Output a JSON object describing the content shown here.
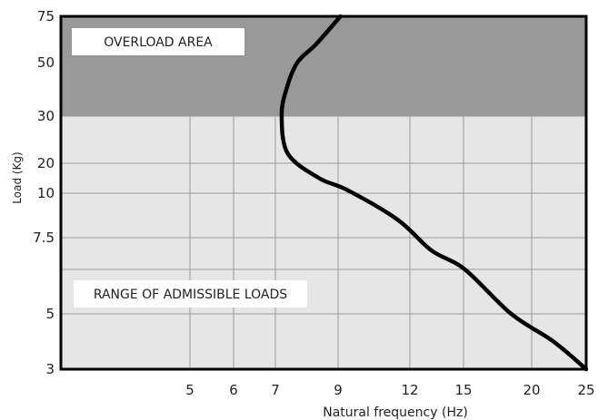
{
  "chart_data": {
    "type": "line",
    "title": "",
    "xlabel": "Natural frequency (Hz)",
    "ylabel": "Load (Kg)",
    "x_ticks": [
      "5",
      "6",
      "7",
      "9",
      "12",
      "15",
      "20",
      "25"
    ],
    "x_tick_values": [
      5,
      6,
      7,
      9,
      12,
      15,
      20,
      25
    ],
    "y_ticks": [
      "75",
      "50",
      "30",
      "20",
      "10",
      "7.5",
      "5",
      "3"
    ],
    "y_tick_values": [
      75,
      50,
      30,
      20,
      10,
      7.5,
      5,
      3
    ],
    "extra_y_gridlines": [
      6
    ],
    "x_scale": "nonuniform (as printed)",
    "y_scale": "nonuniform (as printed)",
    "grid": true,
    "regions": [
      {
        "label": "OVERLOAD AREA",
        "y_from": 30,
        "y_to": 75,
        "color": "#999999"
      },
      {
        "label": "RANGE OF ADMISSIBLE LOADS",
        "y_from": 3,
        "y_to": 30,
        "color": "#e6e6e6"
      }
    ],
    "series": [
      {
        "color": "#000000",
        "points": [
          {
            "x": 9.1,
            "y": 75
          },
          {
            "x": 8.3,
            "y": 60
          },
          {
            "x": 7.7,
            "y": 50
          },
          {
            "x": 7.35,
            "y": 40
          },
          {
            "x": 7.2,
            "y": 30
          },
          {
            "x": 7.4,
            "y": 22
          },
          {
            "x": 8.4,
            "y": 15
          },
          {
            "x": 9.4,
            "y": 11
          },
          {
            "x": 11.5,
            "y": 8.5
          },
          {
            "x": 13.2,
            "y": 6.9
          },
          {
            "x": 15.1,
            "y": 6
          },
          {
            "x": 18.5,
            "y": 5
          },
          {
            "x": 22,
            "y": 4
          },
          {
            "x": 25,
            "y": 3
          }
        ]
      }
    ]
  }
}
